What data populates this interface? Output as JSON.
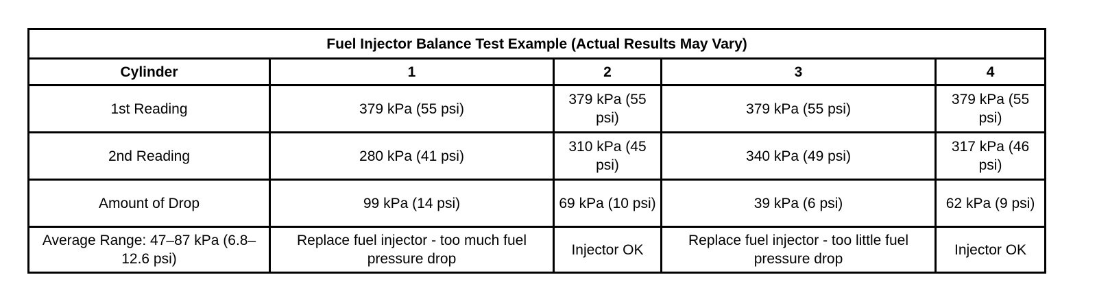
{
  "title": "Fuel Injector Balance Test Example (Actual Results May Vary)",
  "headers": [
    "Cylinder",
    "1",
    "2",
    "3",
    "4"
  ],
  "rows": [
    {
      "label": "1st Reading",
      "cells": [
        "379 kPa (55 psi)",
        "379 kPa (55 psi)",
        "379 kPa (55 psi)",
        "379 kPa (55 psi)"
      ]
    },
    {
      "label": "2nd Reading",
      "cells": [
        "280 kPa (41 psi)",
        "310 kPa (45 psi)",
        "340 kPa (49 psi)",
        "317 kPa (46 psi)"
      ]
    },
    {
      "label": "Amount of Drop",
      "cells": [
        "99 kPa (14 psi)",
        "69 kPa (10 psi)",
        "39 kPa (6 psi)",
        "62 kPa (9 psi)"
      ]
    },
    {
      "label": "Average Range: 47–87 kPa (6.8–12.6 psi)",
      "cells": [
        "Replace fuel injector - too much fuel pressure drop",
        "Injector OK",
        "Replace fuel injector - too little fuel pressure drop",
        "Injector OK"
      ]
    }
  ]
}
